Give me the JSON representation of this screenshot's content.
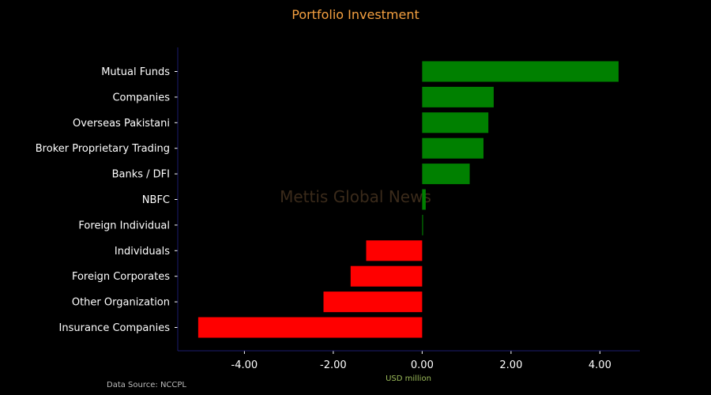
{
  "chart_data": {
    "type": "bar",
    "orientation": "horizontal",
    "title": "Portfolio Investment",
    "xlabel": "USD million",
    "ylabel": "",
    "watermark": "Mettis Global News",
    "source": "Data Source: NCCPL",
    "categories": [
      "Mutual Funds",
      "Companies",
      "Overseas Pakistani",
      "Broker Proprietary Trading",
      "Banks / DFI",
      "NBFC",
      "Foreign Individual",
      "Individuals",
      "Foreign Corporates",
      "Other Organization",
      "Insurance Companies"
    ],
    "values": [
      4.42,
      1.61,
      1.49,
      1.38,
      1.07,
      0.08,
      0.02,
      -1.26,
      -1.61,
      -2.22,
      -5.04
    ],
    "xlim": [
      -5.5,
      4.9
    ],
    "xticks": [
      -4,
      -2,
      0,
      2,
      4
    ],
    "xtick_labels": [
      "-4.00",
      "-2.00",
      "0.00",
      "2.00",
      "4.00"
    ],
    "grid": false,
    "colors": {
      "positive": "#008000",
      "negative": "#ff0000",
      "title": "#f4a040",
      "xlabel": "#9bbb59",
      "axis": "#1c1c6e",
      "text": "#ffffff",
      "watermark": "#3a2a1a",
      "source": "#bbbbbb"
    }
  }
}
